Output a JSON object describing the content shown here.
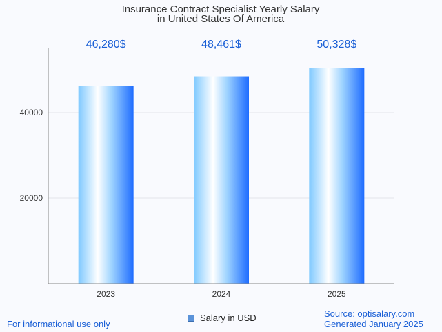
{
  "chart_data": {
    "type": "bar",
    "title": [
      "Insurance Contract Specialist Yearly Salary",
      "in United States Of America"
    ],
    "categories": [
      "2023",
      "2024",
      "2025"
    ],
    "series": [
      {
        "name": "Salary in USD",
        "values": [
          46280,
          48461,
          50328
        ]
      }
    ],
    "value_labels": [
      "46,280$",
      "48,461$",
      "50,328$"
    ],
    "y_ticks": [
      20000,
      40000
    ],
    "y_tick_labels": [
      "20000",
      "40000"
    ],
    "ylim": [
      0,
      55000
    ],
    "grid": true,
    "legend_position": "bottom-center",
    "colors": {
      "bar_light": "#ffffff",
      "bar_mid": "#a9dcff",
      "bar_dark": "#1e6cff",
      "label": "#1a5fd6"
    }
  },
  "footer": {
    "note": "For informational use only",
    "source": "Source: optisalary.com",
    "generated": "Generated January 2025"
  }
}
